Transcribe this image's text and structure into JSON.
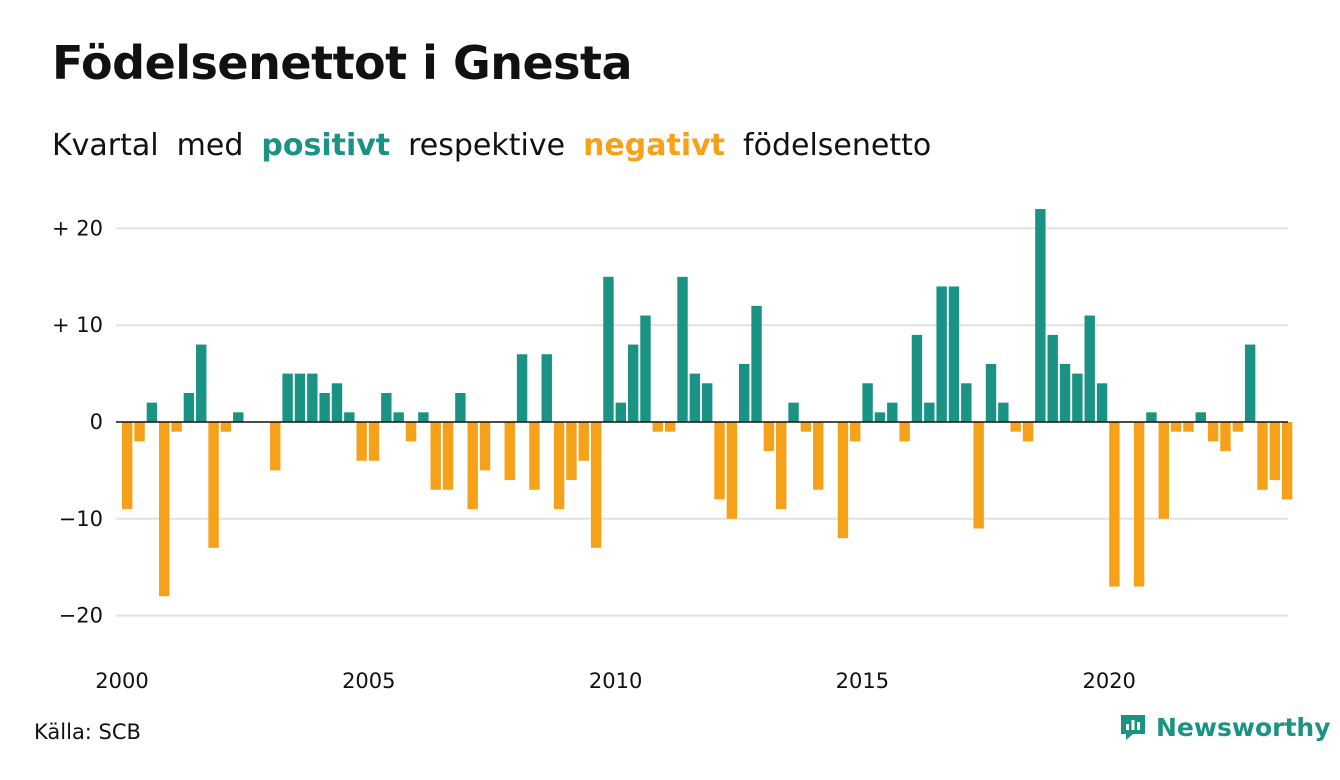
{
  "header": {
    "title": "Födelsenettot i Gnesta",
    "subtitle_parts": [
      "Kvartal",
      "med",
      "positivt",
      "respektive",
      "negativt",
      "födelsenetto"
    ]
  },
  "footer": {
    "source": "Källa: SCB",
    "brand": "Newsworthy"
  },
  "colors": {
    "positive": "#1a9384",
    "negative": "#f6a11a",
    "grid": "#e2e2e2",
    "text": "#111111"
  },
  "chart_data": {
    "type": "bar",
    "title": "Födelsenettot i Gnesta",
    "subtitle": "Kvartal med positivt respektive negativt födelsenetto",
    "xlabel": "",
    "ylabel": "",
    "ylim": [
      -22,
      22
    ],
    "yticks": [
      20,
      10,
      0,
      -10,
      -20
    ],
    "ytick_labels": [
      "+ 20",
      "+ 10",
      "0",
      "−10",
      "−20"
    ],
    "xticks": [
      2000,
      2005,
      2010,
      2015,
      2020
    ],
    "xtick_labels": [
      "2000",
      "2005",
      "2010",
      "2015",
      "2020"
    ],
    "grid": true,
    "start_year": 2000,
    "start_quarter": 1,
    "values": [
      -9,
      -2,
      2,
      -18,
      -1,
      3,
      8,
      -13,
      -1,
      1,
      0,
      0,
      -5,
      5,
      5,
      5,
      3,
      4,
      1,
      -4,
      -4,
      3,
      1,
      -2,
      1,
      -7,
      -7,
      3,
      -9,
      -5,
      0,
      -6,
      7,
      -7,
      7,
      -9,
      -6,
      -4,
      -13,
      15,
      2,
      8,
      11,
      -1,
      -1,
      15,
      5,
      4,
      -8,
      -10,
      6,
      12,
      -3,
      -9,
      2,
      -1,
      -7,
      0,
      -12,
      -2,
      4,
      1,
      2,
      -2,
      9,
      2,
      14,
      14,
      4,
      -11,
      6,
      2,
      -1,
      -2,
      22,
      9,
      6,
      5,
      11,
      4,
      -17,
      0,
      -17,
      1,
      -10,
      -1,
      -1,
      1,
      -2,
      -3,
      -1,
      8,
      -7,
      -6,
      -8
    ]
  }
}
